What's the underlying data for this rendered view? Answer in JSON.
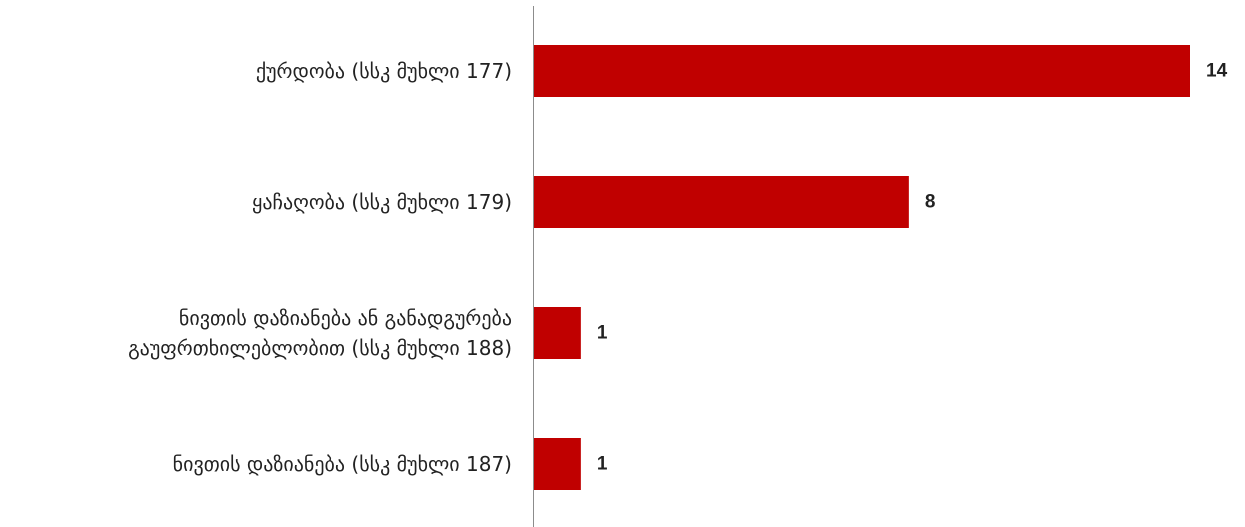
{
  "chart_data": {
    "type": "bar",
    "orientation": "horizontal",
    "categories": [
      [
        "ქურდობა (სსკ მუხლი 177)"
      ],
      [
        "ყაჩაღობა (სსკ მუხლი 179)"
      ],
      [
        "ნივთის დაზიანება ან განადგურება",
        "გაუფრთხილებლობით  (სსკ  მუხლი 188)"
      ],
      [
        "ნივთის დაზიანება (სსკ მუხლი 187)"
      ]
    ],
    "values": [
      14,
      8,
      1,
      1
    ],
    "data_labels": [
      "14",
      "8",
      "1",
      "1"
    ],
    "xlim": [
      0,
      14
    ],
    "bar_color": "#C00000",
    "axis_color": "#8C8C8C",
    "grid": false,
    "legend": "none",
    "title": "",
    "xlabel": "",
    "ylabel": ""
  }
}
